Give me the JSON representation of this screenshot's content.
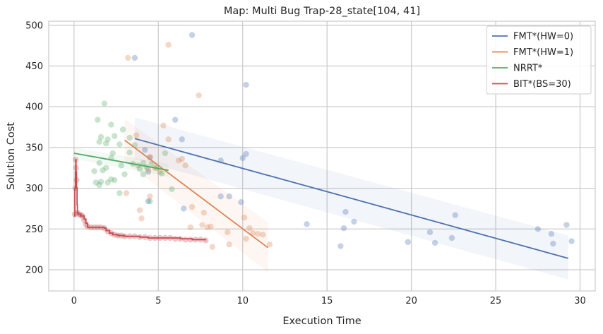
{
  "chart_data": {
    "type": "scatter",
    "title": "Map: Multi Bug Trap-28_state[104, 41]",
    "xlabel": "Execution Time",
    "ylabel": "Solution Cost",
    "xlim": [
      -1.5,
      30.9
    ],
    "ylim": [
      174,
      505
    ],
    "xticks": [
      0,
      5,
      10,
      15,
      20,
      25,
      30
    ],
    "yticks": [
      200,
      250,
      300,
      350,
      400,
      450,
      500
    ],
    "grid": true,
    "legend_position": "top-right",
    "series": [
      {
        "name": "FMT*(HW=0)",
        "color": "#4c72b0",
        "points": [
          [
            3.6,
            460
          ],
          [
            7.0,
            488
          ],
          [
            10.2,
            427
          ],
          [
            6.0,
            384
          ],
          [
            6.4,
            360
          ],
          [
            4.2,
            347
          ],
          [
            4.5,
            338
          ],
          [
            10.2,
            342
          ],
          [
            10.0,
            337
          ],
          [
            8.7,
            334
          ],
          [
            4.4,
            320
          ],
          [
            4.4,
            284
          ],
          [
            6.5,
            275
          ],
          [
            8.7,
            290
          ],
          [
            9.2,
            290
          ],
          [
            9.9,
            283
          ],
          [
            13.8,
            256
          ],
          [
            16.1,
            271
          ],
          [
            16.6,
            259
          ],
          [
            16.0,
            251
          ],
          [
            15.8,
            229
          ],
          [
            19.8,
            234
          ],
          [
            21.1,
            246
          ],
          [
            21.4,
            233
          ],
          [
            22.4,
            239
          ],
          [
            22.6,
            267
          ],
          [
            27.5,
            250
          ],
          [
            28.3,
            244
          ],
          [
            28.4,
            232
          ],
          [
            29.2,
            255
          ],
          [
            29.5,
            235
          ]
        ],
        "trend": {
          "x": [
            3.6,
            29.3
          ],
          "y": [
            361,
            214
          ]
        },
        "band": {
          "x": [
            3.6,
            29.3
          ],
          "upper": [
            387,
            242
          ],
          "lower": [
            336,
            188
          ]
        }
      },
      {
        "name": "FMT*(HW=1)",
        "color": "#dd8452",
        "points": [
          [
            3.2,
            460
          ],
          [
            5.6,
            476
          ],
          [
            7.4,
            414
          ],
          [
            5.3,
            377
          ],
          [
            5.6,
            360
          ],
          [
            3.7,
            365
          ],
          [
            4.5,
            338
          ],
          [
            4.4,
            323
          ],
          [
            5.1,
            320
          ],
          [
            4.8,
            325
          ],
          [
            3.9,
            273
          ],
          [
            4.0,
            263
          ],
          [
            4.5,
            290
          ],
          [
            3.1,
            294
          ],
          [
            6.2,
            334
          ],
          [
            6.4,
            336
          ],
          [
            6.6,
            328
          ],
          [
            7.0,
            277
          ],
          [
            6.9,
            252
          ],
          [
            7.7,
            270
          ],
          [
            7.6,
            255
          ],
          [
            7.9,
            252
          ],
          [
            8.2,
            228
          ],
          [
            8.1,
            253
          ],
          [
            9.1,
            246
          ],
          [
            9.2,
            231
          ],
          [
            10.1,
            264
          ],
          [
            10.2,
            238
          ],
          [
            10.4,
            251
          ],
          [
            10.6,
            245
          ],
          [
            11.6,
            231
          ],
          [
            10.9,
            244
          ],
          [
            11.2,
            243
          ]
        ],
        "trend": {
          "x": [
            3.0,
            11.5
          ],
          "y": [
            359,
            227
          ]
        },
        "band": {
          "x": [
            3.0,
            11.5
          ],
          "upper": [
            385,
            258
          ],
          "lower": [
            333,
            197
          ]
        }
      },
      {
        "name": "NRRT*",
        "color": "#55a868",
        "points": [
          [
            1.8,
            404
          ],
          [
            1.4,
            384
          ],
          [
            2.2,
            378
          ],
          [
            1.5,
            357
          ],
          [
            1.6,
            363
          ],
          [
            1.9,
            355
          ],
          [
            2.0,
            360
          ],
          [
            2.4,
            364
          ],
          [
            2.9,
            372
          ],
          [
            2.7,
            354
          ],
          [
            2.3,
            343
          ],
          [
            2.2,
            337
          ],
          [
            1.5,
            331
          ],
          [
            1.7,
            322
          ],
          [
            1.2,
            321
          ],
          [
            1.9,
            325
          ],
          [
            2.2,
            311
          ],
          [
            2.4,
            310
          ],
          [
            1.3,
            307
          ],
          [
            1.5,
            304
          ],
          [
            1.6,
            308
          ],
          [
            2.0,
            307
          ],
          [
            2.8,
            328
          ],
          [
            3.0,
            317
          ],
          [
            2.7,
            294
          ],
          [
            3.3,
            362
          ],
          [
            3.5,
            330
          ],
          [
            3.3,
            344
          ],
          [
            3.6,
            353
          ],
          [
            3.8,
            328
          ],
          [
            3.9,
            324
          ],
          [
            4.1,
            331
          ],
          [
            4.3,
            326
          ],
          [
            4.1,
            317
          ],
          [
            4.6,
            330
          ],
          [
            4.9,
            325
          ],
          [
            5.2,
            318
          ],
          [
            5.4,
            343
          ],
          [
            5.8,
            299
          ],
          [
            4.5,
            284
          ]
        ],
        "trend": {
          "x": [
            0.0,
            5.6
          ],
          "y": [
            343,
            322
          ]
        },
        "band": {
          "x": [
            0.0,
            5.6
          ],
          "upper": [
            350,
            330
          ],
          "lower": [
            336,
            314
          ]
        }
      },
      {
        "name": "BIT*(BS=30)",
        "color": "#c44e52",
        "points": [
          [
            0.05,
            268
          ],
          [
            0.08,
            300
          ],
          [
            0.1,
            335
          ],
          [
            0.12,
            325
          ],
          [
            0.15,
            310
          ],
          [
            0.2,
            270
          ],
          [
            0.3,
            268
          ],
          [
            0.4,
            267
          ],
          [
            0.5,
            266
          ],
          [
            0.6,
            261
          ],
          [
            0.7,
            256
          ],
          [
            0.8,
            253
          ],
          [
            1.0,
            252
          ],
          [
            1.2,
            252
          ],
          [
            1.4,
            252
          ],
          [
            1.6,
            252
          ],
          [
            1.8,
            251
          ],
          [
            2.0,
            247
          ],
          [
            2.2,
            245
          ],
          [
            2.4,
            243
          ],
          [
            2.6,
            242
          ],
          [
            2.8,
            242
          ],
          [
            3.0,
            241
          ],
          [
            3.3,
            241
          ],
          [
            3.6,
            241
          ],
          [
            3.9,
            240
          ],
          [
            4.2,
            240
          ],
          [
            4.5,
            239
          ],
          [
            4.8,
            239
          ],
          [
            5.1,
            239
          ],
          [
            5.4,
            239
          ],
          [
            5.7,
            239
          ],
          [
            6.0,
            238
          ],
          [
            6.3,
            238
          ],
          [
            6.6,
            237
          ],
          [
            6.9,
            237
          ],
          [
            7.2,
            237
          ],
          [
            7.5,
            237
          ],
          [
            7.8,
            236
          ]
        ],
        "step": {
          "x": [
            0.0,
            0.05,
            0.08,
            0.1,
            0.12,
            0.15,
            0.18,
            0.2,
            0.25,
            0.4,
            0.6,
            0.7,
            0.8,
            1.8,
            1.9,
            2.1,
            2.3,
            2.6,
            3.0,
            3.9,
            4.4,
            5.6,
            6.3,
            7.0,
            7.8
          ],
          "y": [
            266,
            300,
            320,
            335,
            320,
            300,
            280,
            270,
            268,
            266,
            262,
            257,
            252,
            251,
            248,
            245,
            243,
            242,
            241,
            240,
            239,
            239,
            238,
            237,
            236
          ]
        }
      }
    ]
  }
}
